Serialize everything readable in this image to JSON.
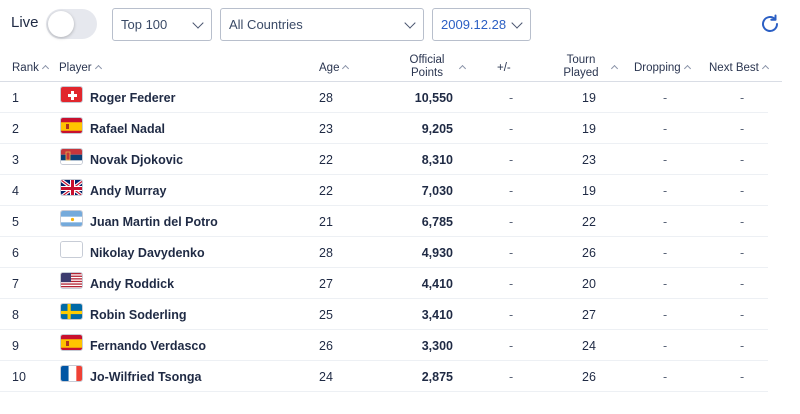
{
  "toolbar": {
    "live_label": "Live",
    "live_on": false,
    "top_select": "Top 100",
    "country_select": "All Countries",
    "date_select": "2009.12.28",
    "refresh_icon": "refresh-icon"
  },
  "table": {
    "headers": {
      "rank": "Rank",
      "player": "Player",
      "age": "Age",
      "points_line1": "Official",
      "points_line2": "Points",
      "diff": "+/-",
      "played_line1": "Tourn",
      "played_line2": "Played",
      "dropping": "Dropping",
      "next_best": "Next Best"
    },
    "rows": [
      {
        "rank": "1",
        "flag": "SUI",
        "name": "Roger Federer",
        "age": "28",
        "points": "10,550",
        "diff": "-",
        "played": "19",
        "dropping": "-",
        "next_best": "-"
      },
      {
        "rank": "2",
        "flag": "ESP",
        "name": "Rafael Nadal",
        "age": "23",
        "points": "9,205",
        "diff": "-",
        "played": "19",
        "dropping": "-",
        "next_best": "-"
      },
      {
        "rank": "3",
        "flag": "SRB",
        "name": "Novak Djokovic",
        "age": "22",
        "points": "8,310",
        "diff": "-",
        "played": "23",
        "dropping": "-",
        "next_best": "-"
      },
      {
        "rank": "4",
        "flag": "GBR",
        "name": "Andy Murray",
        "age": "22",
        "points": "7,030",
        "diff": "-",
        "played": "19",
        "dropping": "-",
        "next_best": "-"
      },
      {
        "rank": "5",
        "flag": "ARG",
        "name": "Juan Martin del Potro",
        "age": "21",
        "points": "6,785",
        "diff": "-",
        "played": "22",
        "dropping": "-",
        "next_best": "-"
      },
      {
        "rank": "6",
        "flag": "NONE",
        "name": "Nikolay Davydenko",
        "age": "28",
        "points": "4,930",
        "diff": "-",
        "played": "26",
        "dropping": "-",
        "next_best": "-"
      },
      {
        "rank": "7",
        "flag": "USA",
        "name": "Andy Roddick",
        "age": "27",
        "points": "4,410",
        "diff": "-",
        "played": "20",
        "dropping": "-",
        "next_best": "-"
      },
      {
        "rank": "8",
        "flag": "SWE",
        "name": "Robin Soderling",
        "age": "25",
        "points": "3,410",
        "diff": "-",
        "played": "27",
        "dropping": "-",
        "next_best": "-"
      },
      {
        "rank": "9",
        "flag": "ESP",
        "name": "Fernando Verdasco",
        "age": "26",
        "points": "3,300",
        "diff": "-",
        "played": "24",
        "dropping": "-",
        "next_best": "-"
      },
      {
        "rank": "10",
        "flag": "FRA",
        "name": "Jo-Wilfried Tsonga",
        "age": "24",
        "points": "2,875",
        "diff": "-",
        "played": "26",
        "dropping": "-",
        "next_best": "-"
      }
    ]
  },
  "colors": {
    "text": "#1f2a44",
    "accent": "#2b5fc4",
    "border": "#b8bfcc",
    "row_divider": "#edf0f4"
  }
}
